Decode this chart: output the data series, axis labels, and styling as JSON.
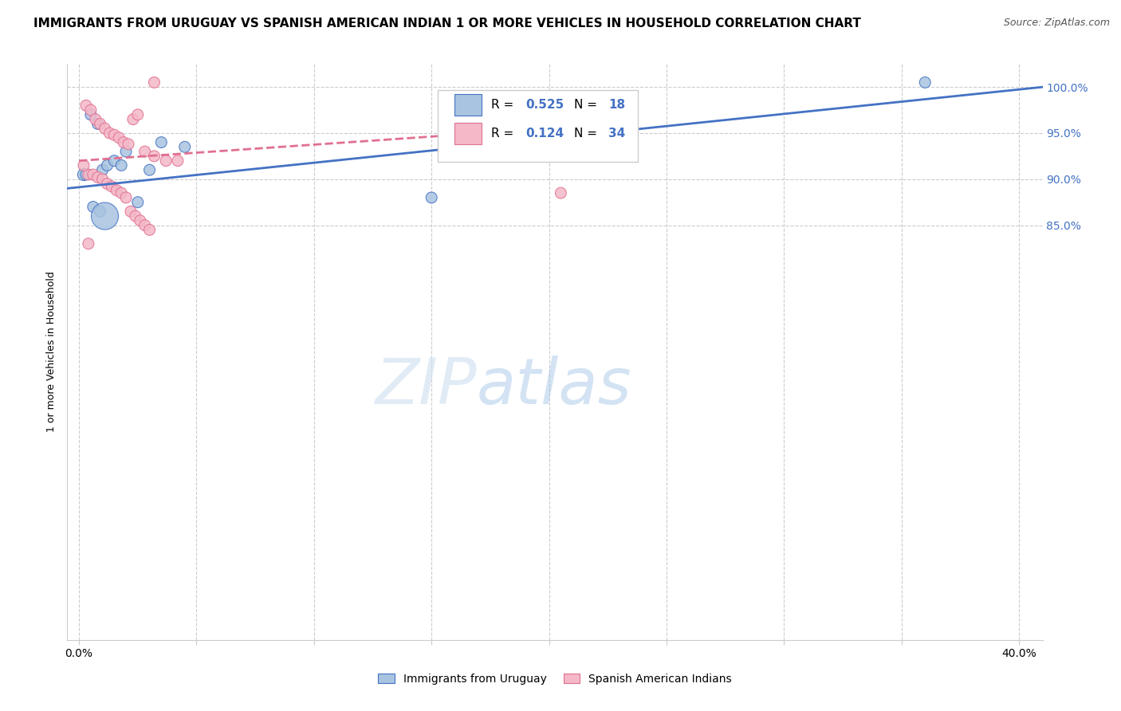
{
  "title": "IMMIGRANTS FROM URUGUAY VS SPANISH AMERICAN INDIAN 1 OR MORE VEHICLES IN HOUSEHOLD CORRELATION CHART",
  "source": "Source: ZipAtlas.com",
  "ylabel": "1 or more Vehicles in Household",
  "xmin": -0.5,
  "xmax": 41.0,
  "ymin": 40.0,
  "ymax": 102.5,
  "ytick_values": [
    85.0,
    90.0,
    95.0,
    100.0
  ],
  "xtick_values": [
    0,
    5,
    10,
    15,
    20,
    25,
    30,
    35,
    40
  ],
  "series1_label": "Immigrants from Uruguay",
  "series1_R": 0.525,
  "series1_N": 18,
  "series1_color": "#a8c4e0",
  "series1_line_color": "#4472c4",
  "series2_label": "Spanish American Indians",
  "series2_R": 0.124,
  "series2_N": 34,
  "series2_color": "#f4b8c8",
  "series2_line_color": "#e07090",
  "series1_x": [
    0.2,
    0.5,
    0.8,
    1.0,
    1.2,
    1.5,
    1.8,
    2.0,
    2.5,
    3.0,
    3.5,
    4.5,
    0.3,
    0.6,
    0.9,
    1.1,
    36.0,
    15.0
  ],
  "series1_y": [
    90.5,
    97.0,
    96.0,
    91.0,
    91.5,
    92.0,
    91.5,
    93.0,
    87.5,
    91.0,
    94.0,
    93.5,
    90.5,
    87.0,
    86.5,
    86.0,
    100.5,
    88.0
  ],
  "series1_sizes": [
    120,
    100,
    100,
    100,
    100,
    100,
    100,
    100,
    100,
    100,
    100,
    100,
    100,
    100,
    100,
    600,
    100,
    100
  ],
  "series2_x": [
    0.3,
    0.5,
    0.7,
    0.9,
    1.1,
    1.3,
    1.5,
    1.7,
    1.9,
    2.1,
    2.3,
    2.5,
    2.8,
    3.2,
    3.7,
    4.2,
    0.4,
    0.6,
    0.8,
    1.0,
    1.2,
    1.4,
    1.6,
    1.8,
    2.0,
    2.2,
    2.4,
    2.6,
    2.8,
    3.0,
    3.2,
    0.2,
    20.5,
    0.4
  ],
  "series2_y": [
    98.0,
    97.5,
    96.5,
    96.0,
    95.5,
    95.0,
    94.8,
    94.5,
    94.0,
    93.8,
    96.5,
    97.0,
    93.0,
    92.5,
    92.0,
    92.0,
    90.5,
    90.5,
    90.2,
    90.0,
    89.5,
    89.2,
    88.8,
    88.5,
    88.0,
    86.5,
    86.0,
    85.5,
    85.0,
    84.5,
    100.5,
    91.5,
    88.5,
    83.0
  ],
  "series2_sizes": [
    100,
    100,
    100,
    100,
    100,
    100,
    100,
    100,
    100,
    100,
    100,
    100,
    100,
    100,
    100,
    100,
    100,
    100,
    100,
    100,
    100,
    100,
    100,
    100,
    100,
    100,
    100,
    100,
    100,
    100,
    100,
    100,
    100,
    100
  ],
  "watermark_zip": "ZIP",
  "watermark_atlas": "atlas",
  "background_color": "#ffffff",
  "grid_color": "#cccccc",
  "title_fontsize": 11,
  "label_fontsize": 9,
  "tick_fontsize": 10,
  "source_fontsize": 9
}
